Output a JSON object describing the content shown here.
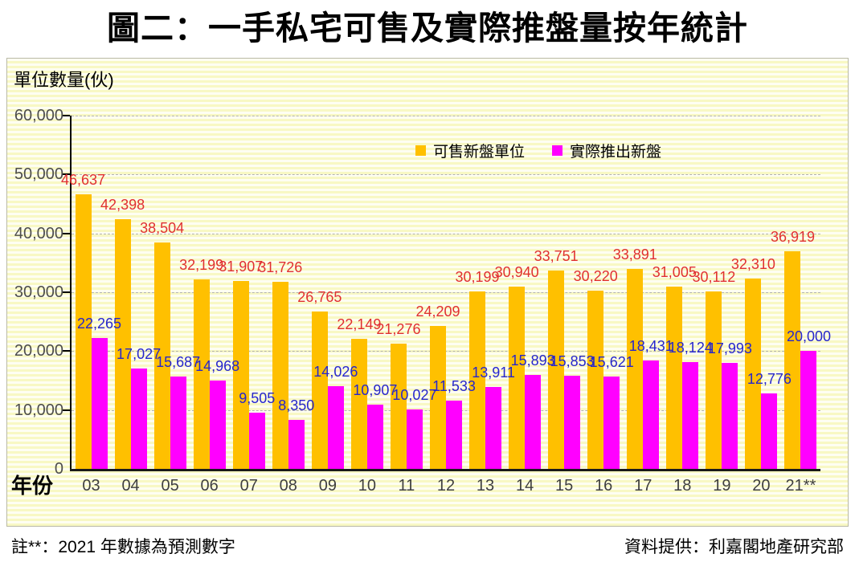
{
  "page": {
    "title": "圖二：一手私宅可售及實際推盤量按年統計"
  },
  "chart_data": {
    "type": "bar",
    "title": "圖二：一手私宅可售及實際推盤量按年統計",
    "xlabel": "年份",
    "ylabel": "單位數量(伙)",
    "ylim": [
      0,
      60000
    ],
    "y_tick_step": 10000,
    "y_tick_labels": [
      "0",
      "10,000",
      "20,000",
      "30,000",
      "40,000",
      "50,000",
      "60,000"
    ],
    "grid": "horizontal-dashed",
    "legend_position": "top-center-inside",
    "categories": [
      "03",
      "04",
      "05",
      "06",
      "07",
      "08",
      "09",
      "10",
      "11",
      "12",
      "13",
      "14",
      "15",
      "16",
      "17",
      "18",
      "19",
      "20",
      "21**"
    ],
    "series": [
      {
        "name": "可售新盤單位",
        "key": "available",
        "color": "#FFC000",
        "label_color": "#E03030",
        "values": [
          46637,
          42398,
          38504,
          32199,
          31907,
          31726,
          26765,
          22149,
          21276,
          24209,
          30199,
          30940,
          33751,
          30220,
          33891,
          31005,
          30112,
          32310,
          36919
        ]
      },
      {
        "name": "實際推出新盤",
        "key": "launched",
        "color": "#FF00FF",
        "label_color": "#2626CC",
        "values": [
          22265,
          17027,
          15687,
          14968,
          9505,
          8350,
          14026,
          10907,
          10027,
          11533,
          13911,
          15893,
          15853,
          15621,
          18431,
          18124,
          17993,
          12776,
          20000
        ]
      }
    ]
  },
  "footnotes": {
    "left": "註**：2021 年數據為預測數字",
    "right": "資料提供：利嘉閣地產研究部"
  }
}
